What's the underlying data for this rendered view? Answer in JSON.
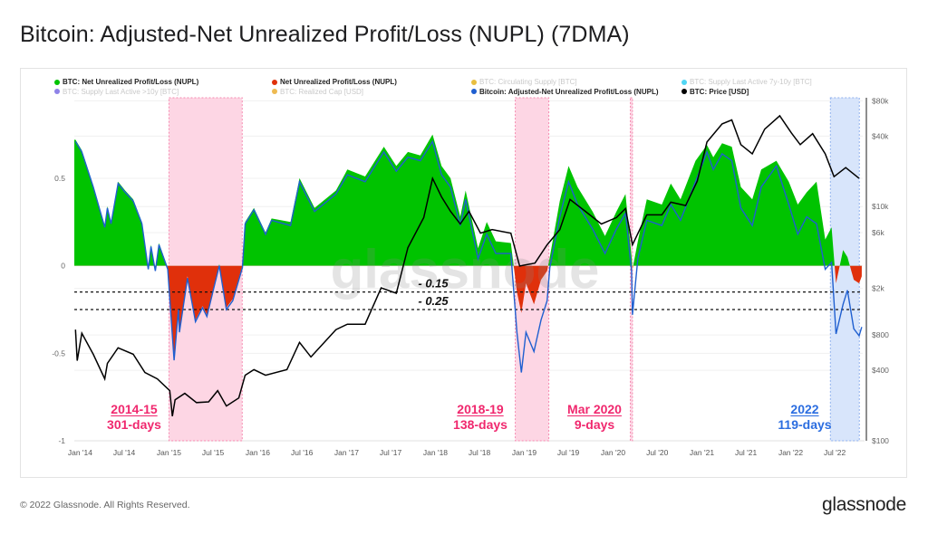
{
  "title": "Bitcoin: Adjusted-Net Unrealized Profit/Loss (NUPL) (7DMA)",
  "footer": {
    "copyright": "© 2022 Glassnode. All Rights Reserved.",
    "logo": "glassnode"
  },
  "watermark": "glassnode",
  "legend": [
    {
      "label": "BTC: Net Unrealized Profit/Loss (NUPL)",
      "color": "#00c300",
      "active": true
    },
    {
      "label": "Net Unrealized Profit/Loss (NUPL)",
      "color": "#e0300b",
      "active": true
    },
    {
      "label": "BTC: Circulating Supply [BTC]",
      "color": "#e0a800",
      "active": false
    },
    {
      "label": "BTC: Supply Last Active 7y-10y [BTC]",
      "color": "#17c8f0",
      "active": false
    },
    {
      "label": "BTC: Supply Last Active >10y [BTC]",
      "color": "#6a5ae0",
      "active": false
    },
    {
      "label": "BTC: Realized Cap [USD]",
      "color": "#e8a317",
      "active": false
    },
    {
      "label": "Bitcoin: Adjusted-Net Unrealized Profit/Loss (NUPL)",
      "color": "#1f5fd0",
      "active": true
    },
    {
      "label": "BTC: Price [USD]",
      "color": "#000000",
      "active": true
    }
  ],
  "annotations": [
    {
      "title": "2014-15",
      "subtitle": "301-days",
      "color": "#f0286e"
    },
    {
      "title": "2018-19",
      "subtitle": "138-days",
      "color": "#f0286e"
    },
    {
      "title": "Mar 2020",
      "subtitle": "9-days",
      "color": "#f0286e"
    },
    {
      "title": "2022",
      "subtitle": "119-days",
      "color": "#2b6de0"
    }
  ],
  "chart_data": {
    "type": "line",
    "title": "Bitcoin: Adjusted-Net Unrealized Profit/Loss (NUPL) (7DMA)",
    "y_left": {
      "ticks": [
        {
          "label": "0.5",
          "value": 0.5
        },
        {
          "label": "0",
          "value": 0
        },
        {
          "label": "-0.5",
          "value": -0.5
        },
        {
          "label": "-1",
          "value": -1
        }
      ],
      "range": [
        -1.0,
        0.96
      ]
    },
    "y_right": {
      "scale": "log",
      "ticks": [
        {
          "label": "$80k",
          "value": 80000
        },
        {
          "label": "$40k",
          "value": 40000
        },
        {
          "label": "$10k",
          "value": 10000
        },
        {
          "label": "$6k",
          "value": 6000
        },
        {
          "label": "$2k",
          "value": 2000
        },
        {
          "label": "$800",
          "value": 800
        },
        {
          "label": "$400",
          "value": 400
        },
        {
          "label": "$100",
          "value": 100
        }
      ],
      "range": [
        100,
        85000
      ]
    },
    "x_range": [
      "2013-12-08",
      "2022-10-24"
    ],
    "x_ticks": [
      {
        "label": "Jan '14",
        "date": "2014-01-01"
      },
      {
        "label": "Jul '14",
        "date": "2014-07-01"
      },
      {
        "label": "Jan '15",
        "date": "2015-01-01"
      },
      {
        "label": "Jul '15",
        "date": "2015-07-01"
      },
      {
        "label": "Jan '16",
        "date": "2016-01-01"
      },
      {
        "label": "Jul '16",
        "date": "2016-07-01"
      },
      {
        "label": "Jan '17",
        "date": "2017-01-01"
      },
      {
        "label": "Jul '17",
        "date": "2017-07-01"
      },
      {
        "label": "Jan '18",
        "date": "2018-01-01"
      },
      {
        "label": "Jul '18",
        "date": "2018-07-01"
      },
      {
        "label": "Jan '19",
        "date": "2019-01-01"
      },
      {
        "label": "Jul '19",
        "date": "2019-07-01"
      },
      {
        "label": "Jan '20",
        "date": "2020-01-01"
      },
      {
        "label": "Jul '20",
        "date": "2020-07-01"
      },
      {
        "label": "Jan '21",
        "date": "2021-01-01"
      },
      {
        "label": "Jul '21",
        "date": "2021-07-01"
      },
      {
        "label": "Jan '22",
        "date": "2022-01-01"
      },
      {
        "label": "Jul '22",
        "date": "2022-07-01"
      }
    ],
    "thresholds": [
      {
        "label": "- 0.15",
        "value": -0.15
      },
      {
        "label": "- 0.25",
        "value": -0.25
      }
    ],
    "regions": [
      {
        "start": "2015-01-01",
        "end": "2015-10-29",
        "color": "pink"
      },
      {
        "start": "2018-11-25",
        "end": "2019-04-12",
        "color": "pink"
      },
      {
        "start": "2020-03-12",
        "end": "2020-03-21",
        "color": "pink"
      },
      {
        "start": "2022-06-13",
        "end": "2022-10-10",
        "color": "blue"
      }
    ],
    "dates": [
      "2013-12-13",
      "2014-01-08",
      "2014-02-24",
      "2014-04-12",
      "2014-04-23",
      "2014-05-08",
      "2014-06-06",
      "2014-07-05",
      "2014-08-07",
      "2014-09-12",
      "2014-10-08",
      "2014-10-19",
      "2014-11-06",
      "2014-11-21",
      "2014-12-27",
      "2015-01-22",
      "2015-02-09",
      "2015-02-13",
      "2015-03-18",
      "2015-04-20",
      "2015-05-19",
      "2015-06-06",
      "2015-07-09",
      "2015-07-27",
      "2015-08-25",
      "2015-09-20",
      "2015-10-30",
      "2015-11-10",
      "2015-12-16",
      "2016-02-02",
      "2016-02-27",
      "2016-05-15",
      "2016-06-21",
      "2016-08-22",
      "2016-11-18",
      "2017-01-04",
      "2017-03-18",
      "2017-06-03",
      "2017-07-24",
      "2017-09-10",
      "2017-10-31",
      "2017-12-20",
      "2018-01-26",
      "2018-03-04",
      "2018-04-13",
      "2018-05-05",
      "2018-06-25",
      "2018-07-31",
      "2018-09-06",
      "2018-11-07",
      "2018-12-02",
      "2018-12-20",
      "2019-01-08",
      "2019-02-10",
      "2019-03-11",
      "2019-04-05",
      "2019-04-16",
      "2019-05-27",
      "2019-07-02",
      "2019-08-08",
      "2019-10-09",
      "2019-11-29",
      "2020-01-15",
      "2020-02-21",
      "2020-03-17",
      "2020-03-21",
      "2020-04-12",
      "2020-05-19",
      "2020-07-20",
      "2020-08-26",
      "2020-10-05",
      "2020-12-06",
      "2021-01-22",
      "2021-02-17",
      "2021-03-25",
      "2021-05-04",
      "2021-06-10",
      "2021-07-27",
      "2021-09-02",
      "2021-11-03",
      "2021-12-24",
      "2022-01-30",
      "2022-03-08",
      "2022-04-17",
      "2022-05-23",
      "2022-06-18",
      "2022-07-06",
      "2022-08-04",
      "2022-08-22",
      "2022-09-17",
      "2022-10-09",
      "2022-10-20"
    ],
    "series": [
      {
        "name": "BTC: Net Unrealized Profit/Loss (NUPL)",
        "values": [
          0.72,
          0.66,
          0.46,
          0.23,
          0.34,
          0.25,
          0.48,
          0.43,
          0.38,
          0.25,
          -0.01,
          0.12,
          -0.02,
          0.13,
          -0.01,
          -0.53,
          -0.24,
          -0.37,
          -0.06,
          -0.31,
          -0.23,
          -0.28,
          -0.09,
          0.01,
          -0.24,
          -0.19,
          0.0,
          0.25,
          0.33,
          0.19,
          0.27,
          0.25,
          0.5,
          0.33,
          0.43,
          0.55,
          0.51,
          0.68,
          0.57,
          0.65,
          0.63,
          0.75,
          0.57,
          0.5,
          0.28,
          0.43,
          0.1,
          0.25,
          0.14,
          0.13,
          -0.15,
          -0.27,
          -0.1,
          -0.22,
          -0.08,
          -0.03,
          0.05,
          0.37,
          0.57,
          0.45,
          0.31,
          0.17,
          0.31,
          0.41,
          0.05,
          -0.02,
          0.14,
          0.38,
          0.35,
          0.47,
          0.38,
          0.6,
          0.69,
          0.62,
          0.7,
          0.68,
          0.45,
          0.38,
          0.55,
          0.6,
          0.48,
          0.35,
          0.42,
          0.48,
          0.15,
          0.22,
          -0.1,
          0.09,
          0.05,
          -0.08,
          -0.1,
          -0.06
        ]
      },
      {
        "name": "Bitcoin: Adjusted-Net Unrealized Profit/Loss (NUPL)",
        "values": [
          0.71,
          0.65,
          0.45,
          0.22,
          0.33,
          0.24,
          0.47,
          0.42,
          0.37,
          0.24,
          -0.02,
          0.11,
          -0.03,
          0.12,
          -0.02,
          -0.54,
          -0.25,
          -0.38,
          -0.07,
          -0.32,
          -0.24,
          -0.29,
          -0.1,
          0.0,
          -0.25,
          -0.2,
          -0.01,
          0.24,
          0.32,
          0.18,
          0.26,
          0.23,
          0.48,
          0.31,
          0.41,
          0.52,
          0.48,
          0.65,
          0.54,
          0.62,
          0.6,
          0.71,
          0.52,
          0.45,
          0.23,
          0.38,
          0.04,
          0.18,
          0.07,
          0.07,
          -0.38,
          -0.61,
          -0.38,
          -0.49,
          -0.31,
          -0.2,
          -0.01,
          0.28,
          0.48,
          0.35,
          0.21,
          0.07,
          0.21,
          0.3,
          -0.03,
          -0.28,
          0.04,
          0.26,
          0.23,
          0.35,
          0.26,
          0.48,
          0.65,
          0.55,
          0.64,
          0.6,
          0.33,
          0.23,
          0.45,
          0.57,
          0.35,
          0.18,
          0.28,
          0.24,
          -0.02,
          0.02,
          -0.39,
          -0.22,
          -0.14,
          -0.36,
          -0.4,
          -0.35
        ]
      }
    ],
    "price": {
      "name": "BTC: Price [USD]",
      "dates": [
        "2013-12-13",
        "2013-12-20",
        "2014-01-08",
        "2014-02-24",
        "2014-04-12",
        "2014-04-23",
        "2014-06-06",
        "2014-08-07",
        "2014-09-24",
        "2014-11-14",
        "2015-01-04",
        "2015-01-15",
        "2015-01-26",
        "2015-03-07",
        "2015-04-24",
        "2015-06-13",
        "2015-07-20",
        "2015-08-25",
        "2015-10-15",
        "2015-11-10",
        "2015-12-16",
        "2016-02-02",
        "2016-04-30",
        "2016-06-21",
        "2016-08-07",
        "2016-11-18",
        "2017-01-04",
        "2017-03-18",
        "2017-05-23",
        "2017-07-24",
        "2017-09-10",
        "2017-11-14",
        "2017-12-20",
        "2018-01-26",
        "2018-03-04",
        "2018-04-13",
        "2018-05-19",
        "2018-07-05",
        "2018-08-22",
        "2018-11-07",
        "2018-12-13",
        "2019-02-14",
        "2019-04-05",
        "2019-05-27",
        "2019-07-08",
        "2019-09-09",
        "2019-11-14",
        "2020-01-15",
        "2020-02-21",
        "2020-03-21",
        "2020-05-19",
        "2020-07-20",
        "2020-08-26",
        "2020-10-26",
        "2020-12-13",
        "2021-01-22",
        "2021-03-25",
        "2021-05-04",
        "2021-06-10",
        "2021-07-27",
        "2021-09-16",
        "2021-11-17",
        "2022-01-04",
        "2022-02-09",
        "2022-04-01",
        "2022-05-23",
        "2022-06-28",
        "2022-08-15",
        "2022-10-09"
      ],
      "values": [
        890,
        483,
        828,
        548,
        338,
        458,
        622,
        548,
        383,
        338,
        268,
        162,
        224,
        254,
        212,
        215,
        268,
        198,
        232,
        363,
        405,
        363,
        405,
        692,
        520,
        890,
        990,
        990,
        2020,
        1820,
        4460,
        8050,
        17400,
        12100,
        9100,
        7100,
        9100,
        5930,
        6360,
        5930,
        3110,
        3290,
        4710,
        6360,
        11500,
        9100,
        7100,
        8050,
        9630,
        4710,
        8500,
        8500,
        10900,
        10200,
        16500,
        35600,
        50800,
        55000,
        33800,
        28200,
        45800,
        59700,
        42500,
        33800,
        41900,
        28200,
        18000,
        21500,
        17400
      ]
    }
  }
}
